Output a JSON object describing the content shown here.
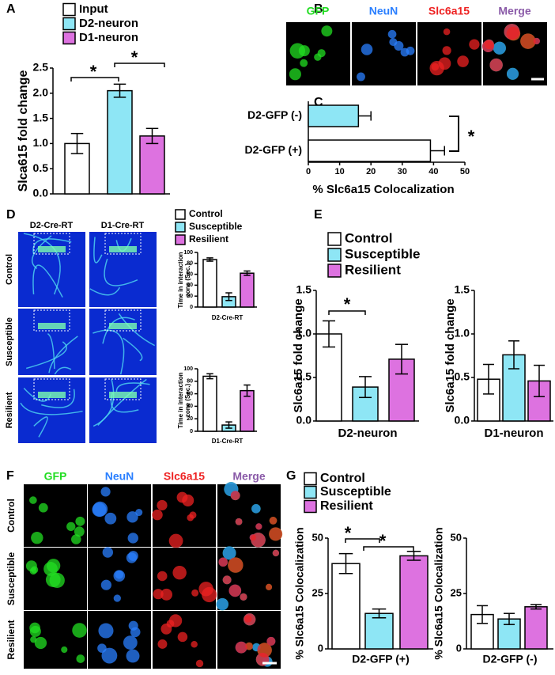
{
  "chart_data": [
    {
      "type": "bar",
      "panel": "A",
      "ylabel": "Slca615 fold change",
      "ylim": [
        0,
        2.5
      ],
      "yticks": [
        {
          "value": 0,
          "label": "0.0"
        },
        0.5,
        {
          "value": 1,
          "label": "1.0"
        },
        1.5,
        {
          "value": 2,
          "label": "2.0"
        },
        2.5
      ],
      "series": [
        {
          "name": "Input",
          "color": "#ffffff",
          "values": [
            1.0
          ],
          "errors": [
            0.2
          ]
        },
        {
          "name": "D2-neuron",
          "color": "#8ee6f5",
          "values": [
            2.05
          ],
          "errors": [
            0.13
          ]
        },
        {
          "name": "D1-neuron",
          "color": "#dd72e0",
          "values": [
            1.15
          ],
          "errors": [
            0.15
          ]
        }
      ],
      "annotations": [
        "*",
        "*"
      ]
    },
    {
      "type": "barh",
      "panel": "C",
      "xlabel": "% Slc6a15 Colocalization",
      "categories": [
        "D2-GFP (-)",
        "D2-GFP (+)"
      ],
      "values": [
        16,
        39
      ],
      "errors": [
        4,
        4.5
      ],
      "colors": [
        "#8ee6f5",
        "#ffffff"
      ],
      "xlim": [
        0,
        50
      ],
      "xticks": [
        0,
        10,
        20,
        30,
        40,
        50
      ],
      "annotations": [
        "*"
      ]
    },
    {
      "type": "bar",
      "ylabel": "Time in interaction zone (Sec.)",
      "xlabel": "D2-Cre-RT",
      "ylim": [
        0,
        100
      ],
      "yticks": [
        0,
        20,
        40,
        60,
        80,
        100
      ],
      "series": [
        {
          "name": "Control",
          "color": "#ffffff",
          "values": [
            87
          ],
          "errors": [
            3
          ]
        },
        {
          "name": "Susceptible",
          "color": "#8ee6f5",
          "values": [
            19
          ],
          "errors": [
            7
          ]
        },
        {
          "name": "Resilient",
          "color": "#dd72e0",
          "values": [
            62
          ],
          "errors": [
            4
          ]
        }
      ]
    },
    {
      "type": "bar",
      "ylabel": "Time in interaction zone (Sec.)",
      "xlabel": "D1-Cre-RT",
      "ylim": [
        0,
        100
      ],
      "yticks": [
        0,
        20,
        40,
        60,
        80,
        100
      ],
      "series": [
        {
          "color": "#ffffff",
          "values": [
            88
          ],
          "errors": [
            4
          ]
        },
        {
          "color": "#8ee6f5",
          "values": [
            10
          ],
          "errors": [
            5
          ]
        },
        {
          "color": "#dd72e0",
          "values": [
            65
          ],
          "errors": [
            9
          ]
        }
      ]
    },
    {
      "type": "bar",
      "panel": "E",
      "ylabel": "Slc6a15 fold change",
      "xlabel": "D2-neuron",
      "ylim": [
        0,
        1.5
      ],
      "yticks": [
        {
          "value": 0,
          "label": "0.0"
        },
        0.5,
        {
          "value": 1,
          "label": "1.0"
        },
        1.5
      ],
      "series": [
        {
          "name": "Control",
          "color": "#ffffff",
          "values": [
            1.0
          ],
          "errors": [
            0.15
          ]
        },
        {
          "name": "Susceptible",
          "color": "#8ee6f5",
          "values": [
            0.39
          ],
          "errors": [
            0.12
          ]
        },
        {
          "name": "Resilient",
          "color": "#dd72e0",
          "values": [
            0.71
          ],
          "errors": [
            0.17
          ]
        }
      ],
      "annotations": [
        "*"
      ]
    },
    {
      "type": "bar",
      "ylabel": "Slc6a15 fold change",
      "xlabel": "D1-neuron",
      "ylim": [
        0,
        1.5
      ],
      "yticks": [
        {
          "value": 0,
          "label": "0.0"
        },
        0.5,
        {
          "value": 1,
          "label": "1.0"
        },
        1.5
      ],
      "series": [
        {
          "color": "#ffffff",
          "values": [
            0.48
          ],
          "errors": [
            0.17
          ]
        },
        {
          "color": "#8ee6f5",
          "values": [
            0.76
          ],
          "errors": [
            0.16
          ]
        },
        {
          "color": "#dd72e0",
          "values": [
            0.46
          ],
          "errors": [
            0.18
          ]
        }
      ]
    },
    {
      "type": "bar",
      "panel": "G",
      "ylabel": "% Slc6a15 Colocalization",
      "xlabel": "D2-GFP (+)",
      "ylim": [
        0,
        50
      ],
      "yticks": [
        0,
        25,
        50
      ],
      "series": [
        {
          "name": "Control",
          "color": "#ffffff",
          "values": [
            38.5
          ],
          "errors": [
            4.5
          ]
        },
        {
          "name": "Susceptible",
          "color": "#8ee6f5",
          "values": [
            16
          ],
          "errors": [
            2
          ]
        },
        {
          "name": "Resilient",
          "color": "#dd72e0",
          "values": [
            42
          ],
          "errors": [
            2
          ]
        }
      ],
      "annotations": [
        "*",
        "*"
      ]
    },
    {
      "type": "bar",
      "ylabel": "% Slc6a15 Colocalization",
      "xlabel": "D2-GFP (-)",
      "ylim": [
        0,
        50
      ],
      "yticks": [
        0,
        25,
        50
      ],
      "series": [
        {
          "color": "#ffffff",
          "values": [
            15.5
          ],
          "errors": [
            4
          ]
        },
        {
          "color": "#8ee6f5",
          "values": [
            13.5
          ],
          "errors": [
            2.5
          ]
        },
        {
          "color": "#dd72e0",
          "values": [
            19
          ],
          "errors": [
            1
          ]
        }
      ]
    }
  ],
  "images": [
    {
      "panel": "B",
      "channels": [
        "GFP",
        "NeuN",
        "Slc6a15",
        "Merge"
      ],
      "channel_colors": [
        "#22dd22",
        "#2a7fff",
        "#ee2222",
        "#8a5aa8"
      ]
    },
    {
      "panel": "D",
      "columns": [
        "D2-Cre-RT",
        "D1-Cre-RT"
      ],
      "rows": [
        "Control",
        "Susceptible",
        "Resilient"
      ]
    },
    {
      "panel": "F",
      "channels": [
        "GFP",
        "NeuN",
        "Slc6a15",
        "Merge"
      ],
      "channel_colors": [
        "#22dd22",
        "#2a7fff",
        "#ee2222",
        "#8a5aa8"
      ],
      "rows": [
        "Control",
        "Susceptible",
        "Resilient"
      ]
    }
  ]
}
